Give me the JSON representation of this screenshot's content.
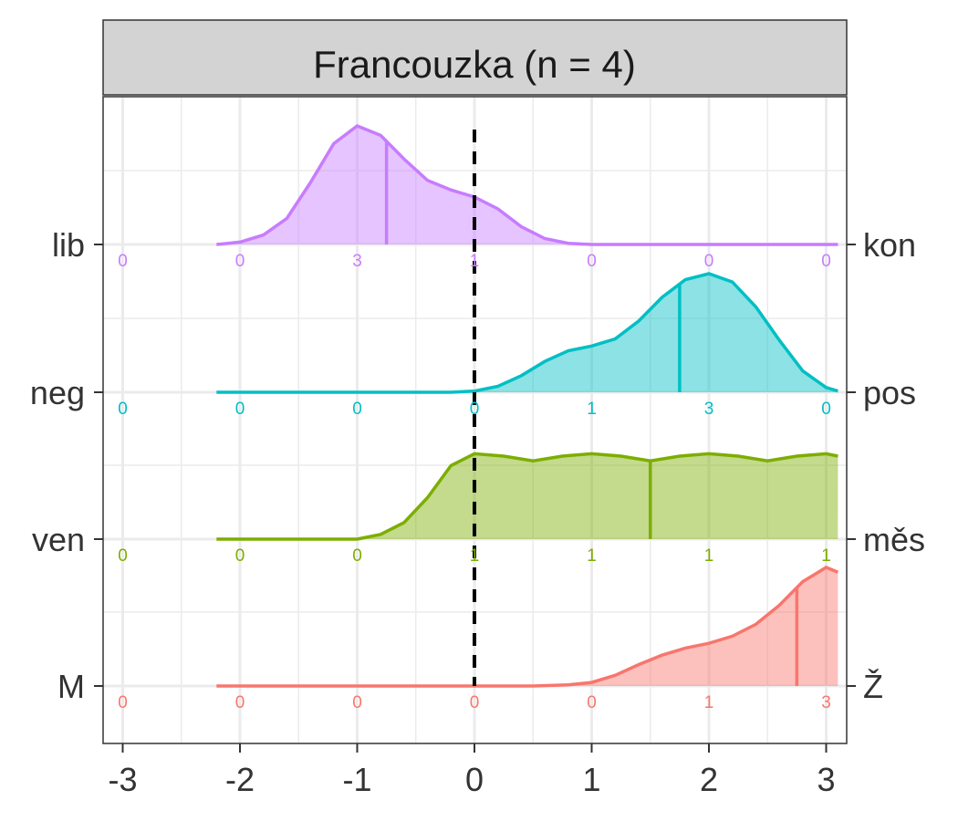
{
  "chart_data": {
    "type": "ridgeline",
    "title": "Francouzka (n = 4)",
    "xlim": [
      -3,
      3
    ],
    "x_ticks": [
      -3,
      -2,
      -1,
      0,
      1,
      2,
      3
    ],
    "x_tick_labels": [
      "-3",
      "-2",
      "-1",
      "0",
      "1",
      "2",
      "3"
    ],
    "grid": true,
    "reference_line_x": 0,
    "count_positions": [
      -3,
      -2,
      -1,
      0,
      1,
      2,
      3
    ],
    "series": [
      {
        "left_label": "lib",
        "right_label": "kon",
        "color": "#C77CFF",
        "mean": -0.75,
        "counts": [
          "0",
          "0",
          "3",
          "1",
          "0",
          "0",
          "0"
        ],
        "density_x": [
          -2.2,
          -2.0,
          -1.8,
          -1.6,
          -1.4,
          -1.2,
          -1.0,
          -0.8,
          -0.6,
          -0.4,
          -0.2,
          0.0,
          0.2,
          0.4,
          0.6,
          0.8,
          1.0,
          1.2,
          1.4,
          1.6,
          1.8,
          2.0,
          2.2,
          2.4,
          2.6,
          2.8,
          3.1
        ],
        "density_y": [
          0.0,
          0.02,
          0.08,
          0.22,
          0.52,
          0.85,
          1.0,
          0.92,
          0.72,
          0.54,
          0.46,
          0.4,
          0.3,
          0.15,
          0.05,
          0.01,
          0.0,
          0.0,
          0.0,
          0.0,
          0.0,
          0.0,
          0.0,
          0.0,
          0.0,
          0.0,
          0.0
        ]
      },
      {
        "left_label": "neg",
        "right_label": "pos",
        "color": "#00BFC4",
        "mean": 1.75,
        "counts": [
          "0",
          "0",
          "0",
          "0",
          "1",
          "3",
          "0"
        ],
        "density_x": [
          -2.2,
          -2.0,
          -1.5,
          -1.0,
          -0.5,
          -0.2,
          0.0,
          0.2,
          0.4,
          0.6,
          0.8,
          1.0,
          1.2,
          1.4,
          1.6,
          1.8,
          2.0,
          2.2,
          2.4,
          2.6,
          2.8,
          3.0,
          3.1
        ],
        "density_y": [
          0.0,
          0.0,
          0.0,
          0.0,
          0.0,
          0.0,
          0.01,
          0.05,
          0.14,
          0.26,
          0.35,
          0.39,
          0.45,
          0.6,
          0.8,
          0.95,
          1.0,
          0.93,
          0.72,
          0.44,
          0.18,
          0.04,
          0.01
        ]
      },
      {
        "left_label": "ven",
        "right_label": "měs",
        "color": "#7CAE00",
        "mean": 1.5,
        "counts": [
          "0",
          "0",
          "0",
          "1",
          "1",
          "1",
          "1"
        ],
        "density_x": [
          -2.2,
          -2.0,
          -1.5,
          -1.0,
          -0.8,
          -0.6,
          -0.4,
          -0.2,
          0.0,
          0.25,
          0.5,
          0.75,
          1.0,
          1.25,
          1.5,
          1.75,
          2.0,
          2.25,
          2.5,
          2.75,
          3.0,
          3.1
        ],
        "density_y": [
          0.0,
          0.0,
          0.0,
          0.0,
          0.04,
          0.14,
          0.35,
          0.62,
          0.72,
          0.7,
          0.66,
          0.7,
          0.72,
          0.7,
          0.66,
          0.7,
          0.72,
          0.7,
          0.66,
          0.7,
          0.72,
          0.7
        ]
      },
      {
        "left_label": "M",
        "right_label": "Ž",
        "color": "#F8766D",
        "mean": 2.75,
        "counts": [
          "0",
          "0",
          "0",
          "0",
          "0",
          "1",
          "3"
        ],
        "density_x": [
          -2.2,
          -2.0,
          -1.5,
          -1.0,
          -0.5,
          0.0,
          0.5,
          0.8,
          1.0,
          1.2,
          1.4,
          1.6,
          1.8,
          2.0,
          2.2,
          2.4,
          2.6,
          2.8,
          3.0,
          3.1
        ],
        "density_y": [
          0.0,
          0.0,
          0.0,
          0.0,
          0.0,
          0.0,
          0.0,
          0.01,
          0.03,
          0.09,
          0.18,
          0.26,
          0.32,
          0.36,
          0.42,
          0.52,
          0.68,
          0.88,
          1.0,
          0.96
        ]
      }
    ]
  }
}
